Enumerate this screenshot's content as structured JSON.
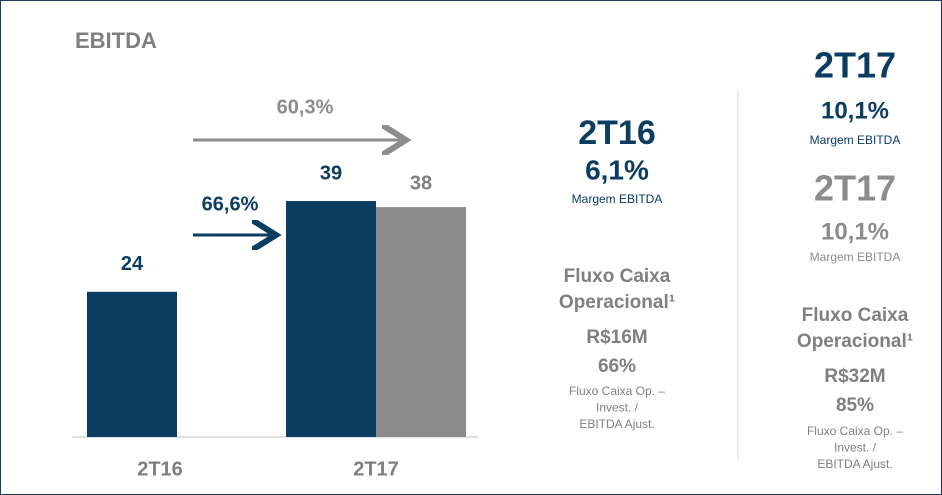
{
  "chart_data": {
    "type": "bar",
    "title": "EBITDA",
    "categories": [
      "2T16",
      "2T17"
    ],
    "series": [
      {
        "color": "#0b3d62",
        "values": [
          24,
          39
        ]
      },
      {
        "color": "#8c8c8c",
        "values": [
          null,
          38
        ]
      }
    ],
    "ylim": [
      0,
      40
    ],
    "annotations": [
      "60,3%",
      "66,6%"
    ],
    "annotation_colors": [
      "#8c8c8c",
      "#0b3d62"
    ]
  },
  "summary": {
    "left": {
      "period": "2T16",
      "margin": "6,1%",
      "margin_label": "Margem EBITDA",
      "cash_title": [
        "Fluxo Caixa",
        "Operacional¹"
      ],
      "cash_value": "R$16M",
      "cash_pct": "66%",
      "cash_note": [
        "Fluxo Caixa Op. –",
        "Invest. /",
        "EBITDA Ajust."
      ]
    },
    "right": {
      "blocks": [
        {
          "period": "2T17",
          "margin": "10,1%",
          "margin_label": "Margem EBITDA",
          "color": "#0b3d62"
        },
        {
          "period": "2T17",
          "margin": "10,1%",
          "margin_label": "Margem EBITDA",
          "color": "#8c8c8c"
        }
      ],
      "cash_title": [
        "Fluxo Caixa",
        "Operacional¹"
      ],
      "cash_value": "R$32M",
      "cash_pct": "85%",
      "cash_note": [
        "Fluxo Caixa Op. –",
        "Invest. /",
        "EBITDA Ajust."
      ]
    }
  }
}
